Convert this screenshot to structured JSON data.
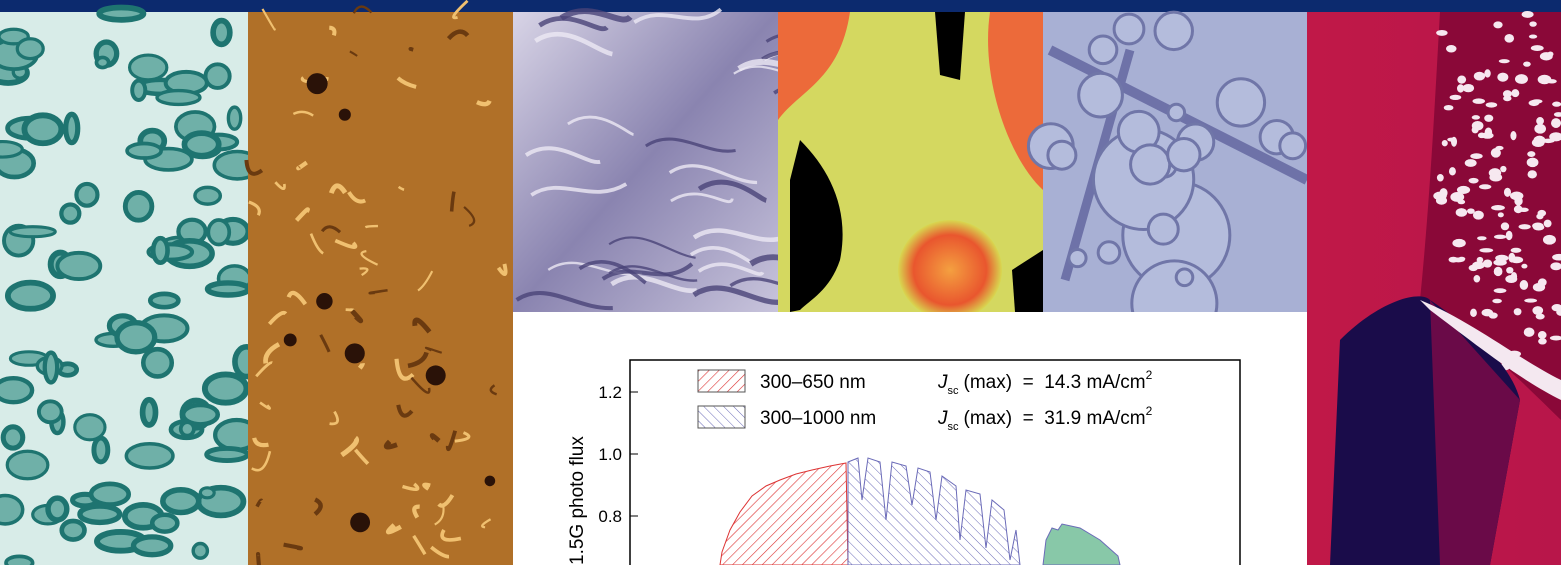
{
  "figure": {
    "y_axis_label": "1.5G photo flux",
    "y_ticks": [
      "1.2",
      "1.0",
      "0.8"
    ],
    "legend": [
      {
        "range": "300–650 nm",
        "symbol": "J",
        "subscript": "sc",
        "text": "(max)  =  14.3 mA/cm",
        "superscript": "2"
      },
      {
        "range": "300–1000 nm",
        "symbol": "J",
        "subscript": "sc",
        "text": "(max)  =  31.9 mA/cm",
        "superscript": "2"
      }
    ]
  }
}
